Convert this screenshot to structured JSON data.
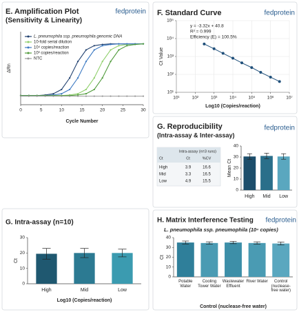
{
  "chart_data": [
    {
      "type": "line",
      "title": "E. Amplification Plot",
      "subtitle": "(Sensitivity & Linearity)",
      "brand": "fedprotein",
      "x_label": "Cycle Number",
      "y_label": "ΔRn",
      "x": [
        0,
        2,
        4,
        6,
        8,
        10,
        12,
        14,
        16,
        18,
        20,
        22,
        24,
        26,
        28,
        30
      ],
      "xlim": [
        0,
        30
      ],
      "xticks": [
        0,
        5,
        10,
        15,
        20,
        25,
        30
      ],
      "ylim": [
        0,
        24
      ],
      "series": [
        {
          "name": "L. pneumophila ssp. pneumophila genomic DNA",
          "color": "#1f3f6e",
          "values": [
            3.0,
            3.0,
            3.0,
            3.2,
            3.6,
            5.0,
            8.8,
            14.2,
            18.0,
            19.4,
            19.8,
            20.0,
            20.0,
            20.0,
            20.0,
            20.0
          ]
        },
        {
          "name": "10-fold serial dilution",
          "color": "#8fcf6b",
          "values": [
            3.0,
            3.0,
            3.0,
            3.0,
            3.0,
            3.0,
            3.2,
            3.6,
            5.0,
            8.8,
            14.2,
            18.0,
            19.4,
            19.8,
            20.0,
            20.0
          ]
        },
        {
          "name": "10⁴ copies/reaction",
          "color": "#3a78c2",
          "values": [
            3.0,
            3.0,
            3.0,
            3.0,
            3.2,
            3.6,
            5.0,
            8.8,
            14.2,
            18.0,
            19.4,
            19.8,
            20.0,
            20.0,
            20.0,
            20.0
          ]
        },
        {
          "name": "10³ copies/reaction",
          "color": "#4f9a3a",
          "values": [
            3.0,
            3.0,
            3.0,
            3.0,
            3.0,
            3.0,
            3.0,
            3.2,
            3.6,
            5.0,
            8.8,
            14.2,
            18.0,
            19.4,
            19.8,
            20.0
          ]
        },
        {
          "name": "NTC",
          "color": "#9a9a9a",
          "values": [
            2.8,
            2.8,
            2.8,
            2.8,
            2.8,
            2.8,
            2.8,
            2.8,
            2.8,
            2.8,
            2.8,
            2.8,
            2.8,
            2.8,
            2.8,
            2.8
          ]
        }
      ]
    },
    {
      "type": "scatter",
      "title": "F. Standard Curve",
      "brand": "fedprotein",
      "x_label": "Log10 (Copies/reaction)",
      "y_label": "Ct Value",
      "log_x": true,
      "log_y": true,
      "grid": true,
      "annotations": [
        "y = -3.32x + 40.8",
        "R² = 0.999",
        "Efficiency (E) = 100.5%"
      ],
      "x": [
        300,
        1000,
        3000,
        10000,
        30000,
        100000,
        300000,
        1000000,
        3000000
      ],
      "values": [
        5000,
        2700,
        1500,
        800,
        440,
        240,
        130,
        70,
        40
      ],
      "color": "#1f4f7a",
      "xlim": [
        10,
        10000000
      ],
      "xticks": [
        {
          "value": 10,
          "label": "10¹"
        },
        {
          "value": 100,
          "label": "10²"
        },
        {
          "value": 1000,
          "label": "10³"
        },
        {
          "value": 10000,
          "label": "10⁴"
        },
        {
          "value": 100000,
          "label": "10⁵"
        },
        {
          "value": 1000000,
          "label": "10⁶"
        },
        {
          "value": 10000000,
          "label": "10⁷"
        }
      ],
      "ylim": [
        10,
        100000
      ],
      "yticks": [
        {
          "value": 10,
          "label": "10¹"
        },
        {
          "value": 100,
          "label": "10²"
        },
        {
          "value": 1000,
          "label": "10³"
        },
        {
          "value": 10000,
          "label": "10⁴"
        },
        {
          "value": 100000,
          "label": "10⁵"
        }
      ]
    },
    {
      "type": "bar",
      "title": "G. Reproducibility",
      "subtitle": "(Intra-assay & Inter-assay)",
      "brand": "fedprotein",
      "y_label": "Mean Ct",
      "categories": [
        "High",
        "Mid",
        "Low"
      ],
      "values": [
        30.5,
        31,
        30.5
      ],
      "errors": [
        2.5,
        2.5,
        2.5
      ],
      "colors": [
        "#1c4e6b",
        "#2a6f8a",
        "#5aa7bf"
      ],
      "ylim": [
        0,
        40
      ],
      "yticks": [
        0,
        10,
        20,
        30,
        40
      ],
      "table": {
        "header": "Intra-assay (n=3 runs)",
        "columns": [
          "Ct",
          "Ct",
          "%CV"
        ],
        "rows": [
          [
            "High",
            3.9,
            16.6
          ],
          [
            "Mid",
            3.3,
            16.5
          ],
          [
            "Low",
            4.9,
            15.5
          ]
        ]
      }
    },
    {
      "type": "bar",
      "title": "G. Intra-assay (n=10)",
      "x_label": "Log10 (Copies/reaction)",
      "y_label": "Ct",
      "categories": [
        "High",
        "Mid",
        "Low"
      ],
      "values": [
        19.5,
        20,
        20
      ],
      "errors": [
        3.5,
        3,
        2.5
      ],
      "colors": [
        "#1f5870",
        "#2c7a92",
        "#3b9bb0"
      ],
      "ylim": [
        0,
        30
      ],
      "yticks": [
        0,
        10,
        20,
        30
      ]
    },
    {
      "type": "bar",
      "title": "H. Matrix Interference Testing",
      "subtitle": "L. pneumophila ssp. pneumophila (10⁴ copies)",
      "brand": "fedprotein",
      "x_label": "Control (nuclease-free water)",
      "y_label": "Ct",
      "categories": [
        "Potable Water",
        "Cooling Tower Water",
        "Wastewater Effluent",
        "River Water",
        "Control (nuclease-free water)"
      ],
      "values": [
        35,
        34.5,
        35,
        34.5,
        34
      ],
      "errors": [
        1.5,
        1.2,
        1.2,
        1.2,
        1.5
      ],
      "colors": [
        "#2f7f9a",
        "#4a9bb3",
        "#3d8fa8",
        "#4a9bb3",
        "#5aa7bf"
      ],
      "ylim": [
        0,
        40
      ],
      "yticks": [
        0,
        10,
        20,
        30,
        40
      ]
    }
  ]
}
